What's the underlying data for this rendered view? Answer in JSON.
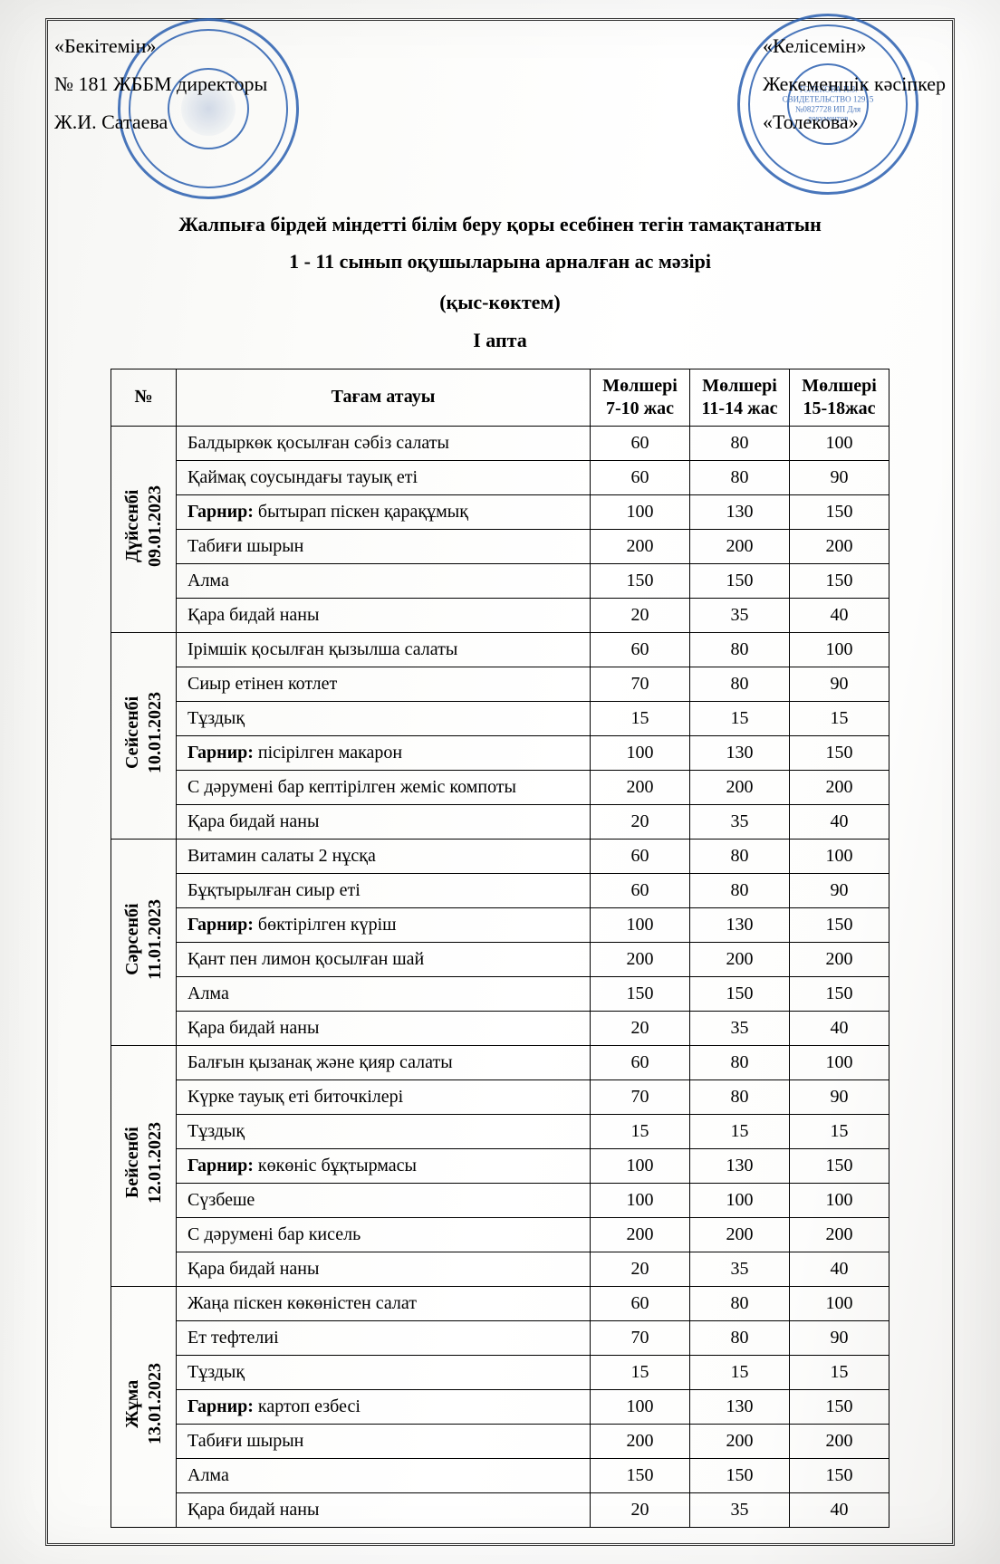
{
  "approval_left": {
    "line1": "«Бекітемін»",
    "line2": "№ 181 ЖББМ директоры",
    "line3": "Ж.И. Сатаева"
  },
  "approval_right": {
    "line1": "«Келісемін»",
    "line2": "Жекеменшік кәсіпкер",
    "line3": "«Толекова»"
  },
  "stamp_right_text": "ТОЛЕКОВА Н.З. СВИДЕТЕЛЬСТВО 12915 №0827728 ИП Для документов",
  "title_line1": "Жалпыға бірдей міндетті білім беру қоры  есебінен тегін тамақтанатын",
  "title_line2": "1 - 11 сынып оқушыларына арналған ас мәзірі",
  "season": "(қыс-көктем)",
  "week": "І апта",
  "columns": {
    "num": "№",
    "food": "Тағам атауы",
    "c1": "Мөлшері 7-10 жас",
    "c2": "Мөлшері 11-14 жас",
    "c3": "Мөлшері 15-18жас"
  },
  "days": [
    {
      "label": "Дүйсенбі\n09.01.2023",
      "items": [
        {
          "food": "Балдыркөк қосылған сәбіз салаты",
          "v": [
            "60",
            "80",
            "100"
          ]
        },
        {
          "food": "Қаймақ соусындағы тауық еті",
          "v": [
            "60",
            "80",
            "90"
          ]
        },
        {
          "food": "Гарнир: бытырап піскен қарақұмық",
          "v": [
            "100",
            "130",
            "150"
          ]
        },
        {
          "food": "Табиғи шырын",
          "v": [
            "200",
            "200",
            "200"
          ]
        },
        {
          "food": "Алма",
          "v": [
            "150",
            "150",
            "150"
          ]
        },
        {
          "food": "Қара бидай наны",
          "v": [
            "20",
            "35",
            "40"
          ]
        }
      ]
    },
    {
      "label": "Сейсенбі\n10.01.2023",
      "items": [
        {
          "food": "Ірімшік қосылған қызылша салаты",
          "v": [
            "60",
            "80",
            "100"
          ]
        },
        {
          "food": "Сиыр етінен котлет",
          "v": [
            "70",
            "80",
            "90"
          ]
        },
        {
          "food": "Тұздық",
          "v": [
            "15",
            "15",
            "15"
          ]
        },
        {
          "food": "Гарнир: пісірілген макарон",
          "v": [
            "100",
            "130",
            "150"
          ]
        },
        {
          "food": "С дәрумені бар кептірілген жеміс компоты",
          "v": [
            "200",
            "200",
            "200"
          ]
        },
        {
          "food": "Қара бидай наны",
          "v": [
            "20",
            "35",
            "40"
          ]
        }
      ]
    },
    {
      "label": "Сәрсенбі\n11.01.2023",
      "items": [
        {
          "food": "Витамин салаты 2 нұсқа",
          "v": [
            "60",
            "80",
            "100"
          ]
        },
        {
          "food": "Бұқтырылған сиыр еті",
          "v": [
            "60",
            "80",
            "90"
          ]
        },
        {
          "food": "Гарнир: бөктірілген күріш",
          "v": [
            "100",
            "130",
            "150"
          ]
        },
        {
          "food": "Қант пен лимон қосылған шай",
          "v": [
            "200",
            "200",
            "200"
          ]
        },
        {
          "food": "Алма",
          "v": [
            "150",
            "150",
            "150"
          ]
        },
        {
          "food": "Қара бидай наны",
          "v": [
            "20",
            "35",
            "40"
          ]
        }
      ]
    },
    {
      "label": "Бейсенбі\n12.01.2023",
      "items": [
        {
          "food": "Балғын қызанақ және қияр салаты",
          "v": [
            "60",
            "80",
            "100"
          ]
        },
        {
          "food": "Күрке тауық еті биточкілері",
          "v": [
            "70",
            "80",
            "90"
          ]
        },
        {
          "food": "Тұздық",
          "v": [
            "15",
            "15",
            "15"
          ]
        },
        {
          "food": "Гарнир: көкөніс бұқтырмасы",
          "v": [
            "100",
            "130",
            "150"
          ]
        },
        {
          "food": "Сүзбеше",
          "v": [
            "100",
            "100",
            "100"
          ]
        },
        {
          "food": "С дәрумені бар кисель",
          "v": [
            "200",
            "200",
            "200"
          ]
        },
        {
          "food": "Қара бидай наны",
          "v": [
            "20",
            "35",
            "40"
          ]
        }
      ]
    },
    {
      "label": "Жұма\n13.01.2023",
      "items": [
        {
          "food": "Жаңа піскен көкөністен салат",
          "v": [
            "60",
            "80",
            "100"
          ]
        },
        {
          "food": "Ет тефтелиі",
          "v": [
            "70",
            "80",
            "90"
          ]
        },
        {
          "food": "Тұздық",
          "v": [
            "15",
            "15",
            "15"
          ]
        },
        {
          "food": "Гарнир: картоп езбесі",
          "v": [
            "100",
            "130",
            "150"
          ]
        },
        {
          "food": "Табиғи шырын",
          "v": [
            "200",
            "200",
            "200"
          ]
        },
        {
          "food": "Алма",
          "v": [
            "150",
            "150",
            "150"
          ]
        },
        {
          "food": "Қара бидай наны",
          "v": [
            "20",
            "35",
            "40"
          ]
        }
      ]
    }
  ]
}
